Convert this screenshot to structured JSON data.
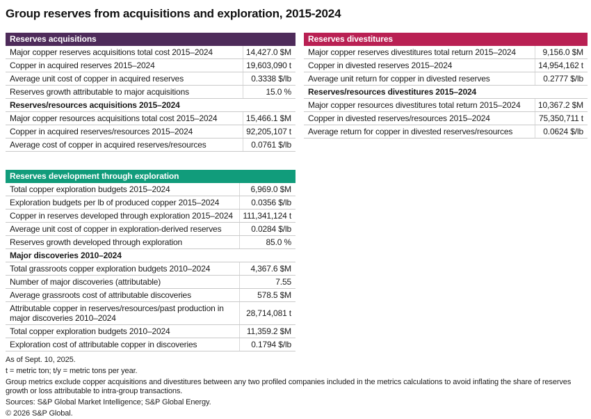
{
  "title": "Group reserves from acquisitions and exploration, 2015-2024",
  "colors": {
    "acquisitions_header": "#4e2b5a",
    "divestitures_header": "#b92053",
    "exploration_header": "#119c7b",
    "row_rule": "#c9c9c9",
    "header_text": "#ffffff"
  },
  "tables": [
    {
      "header": "Reserves acquisitions",
      "accent": "#4e2b5a",
      "rows": [
        {
          "type": "data",
          "label": "Major copper reserves acquisitions total cost 2015–2024",
          "value": "14,427.0 $M"
        },
        {
          "type": "data",
          "label": "Copper in acquired reserves 2015–2024",
          "value": "19,603,090 t"
        },
        {
          "type": "data",
          "label": "Average unit cost of copper in acquired reserves",
          "value": "0.3338 $/lb"
        },
        {
          "type": "data",
          "label": "Reserves growth attributable to major acquisitions",
          "value": "15.0 %"
        },
        {
          "type": "subheader",
          "label": "Reserves/resources acquisitions 2015–2024"
        },
        {
          "type": "data",
          "label": "Major copper resources acquisitions total cost 2015–2024",
          "value": "15,466.1 $M"
        },
        {
          "type": "data",
          "label": "Copper in acquired reserves/resources 2015–2024",
          "value": "92,205,107 t"
        },
        {
          "type": "data",
          "label": "Average cost of copper in acquired reserves/resources",
          "value": "0.0761 $/lb"
        }
      ]
    },
    {
      "header": "Reserves divestitures",
      "accent": "#b92053",
      "rows": [
        {
          "type": "data",
          "label": "Major copper reserves divestitures total return 2015–2024",
          "value": "9,156.0 $M"
        },
        {
          "type": "data",
          "label": "Copper in divested reserves 2015–2024",
          "value": "14,954,162 t"
        },
        {
          "type": "data",
          "label": "Average unit return for copper in divested reserves",
          "value": "0.2777 $/lb"
        },
        {
          "type": "subheader",
          "label": "Reserves/resources divestitures 2015–2024"
        },
        {
          "type": "data",
          "label": "Major copper resources divestitures total return 2015–2024",
          "value": "10,367.2 $M"
        },
        {
          "type": "data",
          "label": "Copper in divested reserves/resources 2015–2024",
          "value": "75,350,711 t"
        },
        {
          "type": "data",
          "label": "Average return for copper in divested reserves/resources",
          "value": "0.0624 $/lb"
        }
      ]
    },
    {
      "header": "Reserves development through exploration",
      "accent": "#119c7b",
      "rows": [
        {
          "type": "data",
          "label": "Total copper exploration budgets 2015–2024",
          "value": "6,969.0 $M"
        },
        {
          "type": "data",
          "label": "Exploration budgets per lb of produced copper 2015–2024",
          "value": "0.0356 $/lb"
        },
        {
          "type": "data",
          "label": "Copper in reserves developed through exploration 2015–2024",
          "value": "111,341,124 t"
        },
        {
          "type": "data",
          "label": "Average unit cost of copper in exploration-derived reserves",
          "value": "0.0284 $/lb"
        },
        {
          "type": "data",
          "label": "Reserves growth developed through exploration",
          "value": "85.0 %"
        },
        {
          "type": "subheader",
          "label": "Major discoveries 2010–2024"
        },
        {
          "type": "data",
          "label": "Total grassroots copper exploration budgets 2010–2024",
          "value": "4,367.6 $M"
        },
        {
          "type": "data",
          "label": "Number of major discoveries (attributable)",
          "value": "7.55"
        },
        {
          "type": "data",
          "label": "Average grassroots cost of attributable discoveries",
          "value": "578.5 $M"
        },
        {
          "type": "data",
          "label": "Attributable copper in reserves/resources/past production in major discoveries 2010–2024",
          "value": "28,714,081 t"
        },
        {
          "type": "data",
          "label": "Total copper exploration budgets 2010–2024",
          "value": "11,359.2 $M"
        },
        {
          "type": "data",
          "label": "Exploration cost of attributable copper in discoveries",
          "value": "0.1794 $/lb"
        }
      ]
    }
  ],
  "footnotes": [
    "As of Sept. 10, 2025.",
    "t = metric ton; t/y = metric tons per year.",
    "Group metrics exclude copper acquisitions and divestitures between any two profiled companies included in the metrics calculations to avoid inflating the share of reserves growth or loss attributable to intra-group transactions.",
    "Sources: S&P Global Market Intelligence; S&P Global Energy.",
    "© 2026 S&P Global."
  ]
}
